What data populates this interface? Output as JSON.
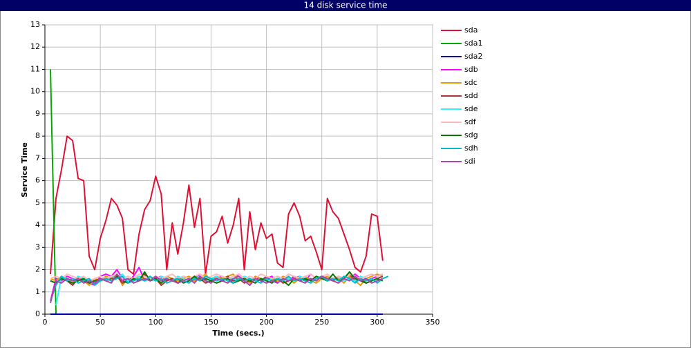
{
  "chart_data": {
    "type": "line",
    "title": "14 disk service time",
    "x_label": "Time (secs.)",
    "y_label": "Service Time",
    "xlim": [
      0,
      350
    ],
    "xticks": [
      0,
      50,
      100,
      150,
      200,
      250,
      300,
      350
    ],
    "ylim": [
      0,
      13
    ],
    "yticks": [
      0,
      1,
      2,
      3,
      4,
      5,
      6,
      7,
      8,
      9,
      10,
      11,
      12,
      13
    ],
    "grid": true,
    "legend": "right",
    "x": [
      5,
      10,
      15,
      20,
      25,
      30,
      35,
      40,
      45,
      50,
      55,
      60,
      65,
      70,
      75,
      80,
      85,
      90,
      95,
      100,
      105,
      110,
      115,
      120,
      125,
      130,
      135,
      140,
      145,
      150,
      155,
      160,
      165,
      170,
      175,
      180,
      185,
      190,
      195,
      200,
      205,
      210,
      215,
      220,
      225,
      230,
      235,
      240,
      245,
      250,
      255,
      260,
      265,
      270,
      275,
      280,
      285,
      290,
      295,
      300,
      305,
      310
    ],
    "series": [
      {
        "name": "sda",
        "color": "#dd1133",
        "values": [
          1.8,
          5.2,
          6.5,
          8.0,
          7.8,
          6.1,
          6.0,
          2.6,
          2.0,
          3.4,
          4.2,
          5.2,
          4.9,
          4.3,
          2.0,
          1.8,
          3.6,
          4.7,
          5.1,
          6.2,
          5.4,
          2.0,
          4.1,
          2.7,
          4.1,
          5.8,
          3.9,
          5.2,
          1.8,
          3.5,
          3.7,
          4.4,
          3.2,
          4.0,
          5.2,
          2.0,
          4.6,
          2.9,
          4.1,
          3.4,
          3.6,
          2.3,
          2.1,
          4.5,
          5.0,
          4.4,
          3.3,
          3.5,
          2.8,
          2.0,
          5.2,
          4.6,
          4.3,
          3.6,
          2.9,
          2.1,
          1.9,
          2.6,
          4.5,
          4.4,
          2.4,
          null
        ]
      },
      {
        "name": "sda1",
        "color": "#00aa00",
        "values": [
          11,
          0,
          0,
          0,
          0,
          0,
          0,
          0,
          0,
          0,
          0,
          0,
          0,
          0,
          0,
          0,
          0,
          0,
          0,
          0,
          0,
          0,
          0,
          0,
          0,
          0,
          0,
          0,
          0,
          0,
          0,
          0,
          0,
          0,
          0,
          0,
          0,
          0,
          0,
          0,
          0,
          0,
          0,
          0,
          0,
          0,
          0,
          0,
          0,
          0,
          0,
          0,
          0,
          0,
          0,
          0,
          0,
          0,
          0,
          0,
          0,
          null
        ]
      },
      {
        "name": "sda2",
        "color": "#0000aa",
        "values": [
          0,
          0,
          0,
          0,
          0,
          0,
          0,
          0,
          0,
          0,
          0,
          0,
          0,
          0,
          0,
          0,
          0,
          0,
          0,
          0,
          0,
          0,
          0,
          0,
          0,
          0,
          0,
          0,
          0,
          0,
          0,
          0,
          0,
          0,
          0,
          0,
          0,
          0,
          0,
          0,
          0,
          0,
          0,
          0,
          0,
          0,
          0,
          0,
          0,
          0,
          0,
          0,
          0,
          0,
          0,
          0,
          0,
          0,
          0,
          0,
          0,
          null
        ]
      },
      {
        "name": "sdb",
        "color": "#ff00ff",
        "values": [
          0.6,
          1.6,
          1.5,
          1.7,
          1.6,
          1.5,
          1.6,
          1.4,
          1.3,
          1.7,
          1.8,
          1.7,
          2.0,
          1.6,
          1.5,
          1.7,
          2.1,
          1.5,
          1.6,
          1.6,
          1.7,
          1.5,
          1.6,
          1.5,
          1.7,
          1.6,
          1.5,
          1.8,
          1.6,
          1.5,
          1.6,
          1.7,
          1.6,
          1.5,
          1.8,
          1.6,
          1.4,
          1.7,
          1.5,
          1.6,
          1.7,
          1.4,
          1.6,
          1.5,
          1.7,
          1.6,
          1.5,
          1.8,
          1.6,
          1.7,
          1.5,
          1.6,
          1.7,
          1.5,
          1.6,
          1.8,
          1.6,
          1.5,
          1.6,
          1.7,
          1.8,
          null
        ]
      },
      {
        "name": "sdc",
        "color": "#e69900",
        "values": [
          1.6,
          1.5,
          1.7,
          1.6,
          1.4,
          1.7,
          1.5,
          1.3,
          1.6,
          1.5,
          1.7,
          1.6,
          1.8,
          1.3,
          1.6,
          1.5,
          1.7,
          1.6,
          1.5,
          1.6,
          1.4,
          1.7,
          1.6,
          1.5,
          1.6,
          1.7,
          1.5,
          1.6,
          1.8,
          1.5,
          1.7,
          1.6,
          1.7,
          1.8,
          1.5,
          1.6,
          1.4,
          1.7,
          1.6,
          1.5,
          1.6,
          1.5,
          1.7,
          1.6,
          1.4,
          1.6,
          1.7,
          1.5,
          1.4,
          1.6,
          1.7,
          1.5,
          1.6,
          1.4,
          1.7,
          1.5,
          1.3,
          1.6,
          1.7,
          1.8,
          1.7,
          null
        ]
      },
      {
        "name": "sdd",
        "color": "#aa3333",
        "values": [
          1.5,
          1.4,
          1.6,
          1.5,
          1.3,
          1.6,
          1.5,
          1.4,
          1.5,
          1.6,
          1.5,
          1.6,
          1.7,
          1.4,
          1.5,
          1.6,
          1.5,
          1.8,
          1.5,
          1.6,
          1.3,
          1.5,
          1.6,
          1.4,
          1.6,
          1.5,
          1.7,
          1.6,
          1.4,
          1.5,
          1.6,
          1.5,
          1.7,
          1.5,
          1.6,
          1.4,
          1.5,
          1.6,
          1.5,
          1.7,
          1.5,
          1.6,
          1.4,
          1.5,
          1.6,
          1.7,
          1.5,
          1.6,
          1.5,
          1.7,
          1.6,
          1.5,
          1.7,
          1.6,
          1.8,
          1.5,
          1.6,
          1.4,
          1.5,
          1.6,
          1.7,
          null
        ]
      },
      {
        "name": "sde",
        "color": "#33eeff",
        "values": [
          null,
          0.4,
          1.7,
          1.6,
          1.5,
          1.7,
          1.6,
          1.5,
          1.4,
          1.6,
          1.5,
          1.7,
          1.6,
          1.8,
          1.5,
          1.6,
          1.7,
          1.5,
          1.6,
          1.5,
          1.7,
          1.6,
          1.5,
          1.7,
          1.6,
          1.5,
          1.6,
          1.7,
          1.5,
          1.6,
          1.7,
          1.5,
          1.6,
          1.6,
          1.5,
          1.7,
          1.6,
          1.5,
          1.6,
          1.5,
          1.6,
          1.7,
          1.5,
          1.6,
          1.5,
          1.7,
          1.6,
          1.5,
          1.7,
          1.6,
          1.5,
          1.6,
          1.7,
          1.5,
          1.6,
          1.5,
          1.7,
          1.6,
          1.5,
          1.6,
          1.5,
          null
        ]
      },
      {
        "name": "sdf",
        "color": "#ffbbbb",
        "values": [
          1.6,
          1.7,
          1.6,
          1.8,
          1.7,
          1.6,
          1.7,
          1.5,
          1.6,
          1.7,
          1.6,
          1.7,
          1.8,
          1.6,
          1.7,
          1.6,
          1.8,
          1.7,
          1.6,
          1.7,
          1.6,
          1.7,
          1.8,
          1.6,
          1.7,
          1.6,
          1.7,
          1.8,
          1.6,
          1.7,
          1.8,
          1.7,
          1.6,
          1.7,
          1.8,
          1.6,
          1.7,
          1.6,
          1.8,
          1.7,
          1.6,
          1.7,
          1.6,
          1.8,
          1.7,
          1.6,
          1.7,
          1.8,
          1.6,
          1.7,
          1.8,
          1.6,
          1.7,
          1.6,
          1.8,
          1.7,
          1.6,
          1.7,
          1.8,
          1.7,
          1.8,
          null
        ]
      },
      {
        "name": "sdg",
        "color": "#007700",
        "values": [
          1.5,
          1.4,
          1.6,
          1.5,
          1.4,
          1.5,
          1.6,
          1.4,
          1.5,
          1.5,
          1.6,
          1.5,
          1.7,
          1.5,
          1.4,
          1.6,
          1.5,
          1.9,
          1.5,
          1.6,
          1.4,
          1.6,
          1.5,
          1.6,
          1.4,
          1.5,
          1.7,
          1.5,
          1.6,
          1.5,
          1.4,
          1.5,
          1.6,
          1.4,
          1.5,
          1.6,
          1.5,
          1.4,
          1.6,
          1.5,
          1.4,
          1.6,
          1.5,
          1.3,
          1.6,
          1.5,
          1.6,
          1.5,
          1.7,
          1.6,
          1.5,
          1.8,
          1.5,
          1.6,
          1.9,
          1.6,
          1.5,
          1.4,
          1.5,
          1.6,
          1.5,
          null
        ]
      },
      {
        "name": "sdh",
        "color": "#00bbcc",
        "values": [
          0.6,
          1.3,
          1.7,
          1.5,
          1.6,
          1.4,
          1.5,
          1.6,
          1.3,
          1.5,
          1.6,
          1.5,
          1.6,
          1.7,
          1.4,
          1.5,
          1.6,
          1.5,
          1.7,
          1.5,
          1.6,
          1.4,
          1.5,
          1.6,
          1.5,
          1.4,
          1.6,
          1.5,
          1.7,
          1.6,
          1.5,
          1.6,
          1.5,
          1.4,
          1.6,
          1.5,
          1.6,
          1.5,
          1.4,
          1.6,
          1.5,
          1.6,
          1.5,
          1.7,
          1.5,
          1.6,
          1.5,
          1.4,
          1.6,
          1.7,
          1.5,
          1.6,
          1.5,
          1.7,
          1.6,
          1.4,
          1.6,
          1.5,
          1.6,
          1.4,
          1.6,
          1.7
        ]
      },
      {
        "name": "sdi",
        "color": "#aa44aa",
        "values": [
          0.5,
          1.5,
          1.4,
          1.6,
          1.5,
          1.6,
          1.4,
          1.5,
          1.4,
          1.6,
          1.5,
          1.4,
          1.8,
          1.5,
          1.6,
          1.4,
          1.5,
          1.6,
          1.5,
          1.7,
          1.5,
          1.6,
          1.5,
          1.4,
          1.5,
          1.6,
          1.4,
          1.7,
          1.5,
          1.4,
          1.6,
          1.5,
          1.4,
          1.6,
          1.7,
          1.5,
          1.3,
          1.6,
          1.5,
          1.4,
          1.5,
          1.4,
          1.6,
          1.5,
          1.6,
          1.5,
          1.4,
          1.6,
          1.5,
          1.7,
          1.6,
          1.5,
          1.4,
          1.6,
          1.5,
          1.7,
          1.5,
          1.6,
          1.4,
          1.5,
          1.6,
          null
        ]
      }
    ]
  }
}
